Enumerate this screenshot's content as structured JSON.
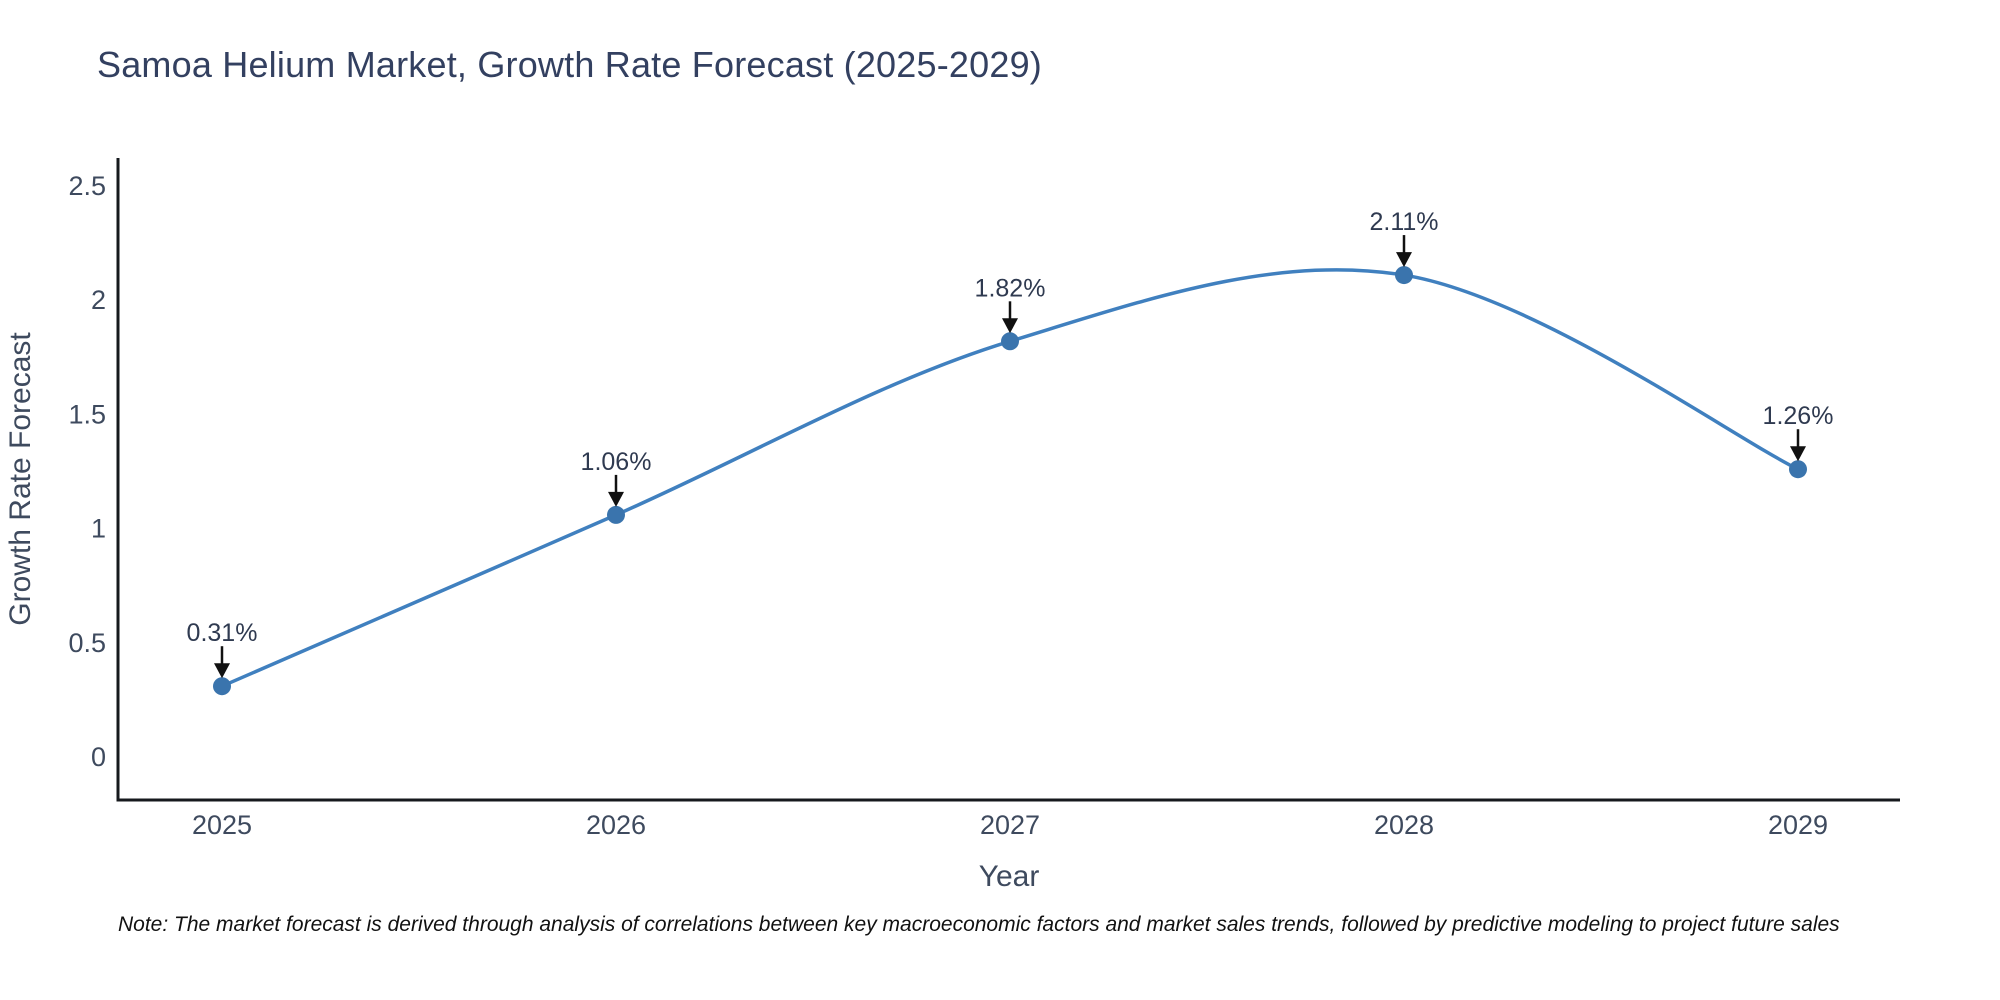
{
  "title": "Samoa Helium Market, Growth Rate Forecast (2025-2029)",
  "note": "Note: The market forecast is derived through analysis of correlations between key macroeconomic factors and market sales trends, followed by predictive modeling to project future sales",
  "chart_data": {
    "type": "line",
    "line_shape": "spline",
    "title": "Samoa Helium Market, Growth Rate Forecast (2025-2029)",
    "xlabel": "Year",
    "ylabel": "Growth Rate Forecast",
    "x": [
      2025,
      2026,
      2027,
      2028,
      2029
    ],
    "values": [
      0.31,
      1.06,
      1.82,
      2.11,
      1.26
    ],
    "point_labels": [
      "0.31%",
      "1.06%",
      "1.82%",
      "2.11%",
      "1.26%"
    ],
    "xtick_labels": [
      "2025",
      "2026",
      "2027",
      "2028",
      "2029"
    ],
    "yticks": [
      0,
      0.5,
      1,
      1.5,
      2,
      2.5
    ],
    "ytick_labels": [
      "0",
      "0.5",
      "1",
      "1.5",
      "2",
      "2.5"
    ],
    "ylim": [
      0,
      2.5
    ],
    "grid": false,
    "legend": "none",
    "annotation_arrows": true
  },
  "colors": {
    "background": "#ffffff",
    "line": "#4080bf",
    "marker": "#3a74ad",
    "axis": "#16191d",
    "tick_text": "#3e4a5e",
    "axis_title_text": "#3e4a5e",
    "title_text": "#334060",
    "annotation_text": "#2f3a50",
    "arrow": "#111111",
    "note_text": "#111111"
  }
}
